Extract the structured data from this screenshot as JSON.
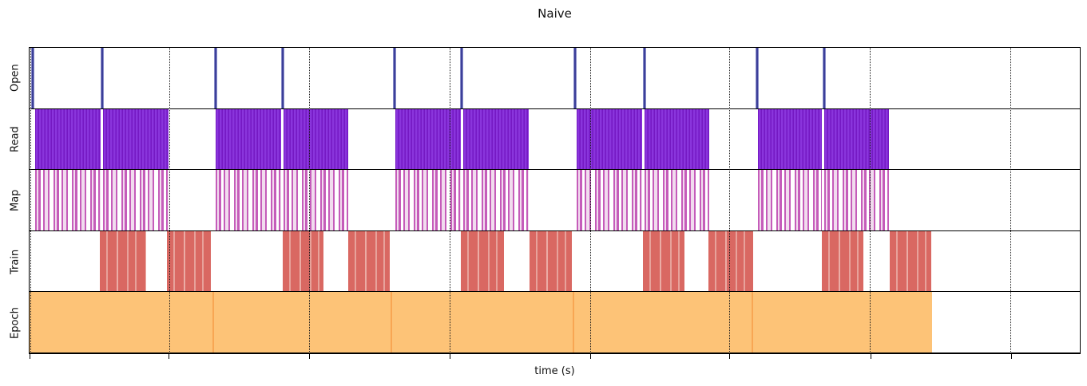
{
  "title": "Naive",
  "xlabel": "time (s)",
  "colors": {
    "open_spike": "#3c3f99",
    "read_block": "#7f24d4",
    "map_lines": "#c55cba",
    "train_block": "#d96862",
    "train_seam": "#e7a29b",
    "epoch_bar": "#fdc377",
    "epoch_seam": "#f8a653",
    "grid": "#1a1a1a",
    "frame": "#000000"
  },
  "chart_data": {
    "type": "broken_barh_timeline",
    "title": "Naive",
    "xlabel": "time (s)",
    "x_axis": {
      "tick_labels": [],
      "tick_positions_pct": [
        0.1,
        13.29,
        26.65,
        40.02,
        53.38,
        66.59,
        80.03,
        93.39
      ],
      "gridlines": "dotted-vertical",
      "units": "percent of visible time axis (no numeric tick labels shown)"
    },
    "legend": "none",
    "rows": [
      {
        "label": "Open",
        "style": "spikes",
        "color": "#3c3f99",
        "events_pct": [
          0.3,
          6.91,
          17.69,
          24.07,
          34.78,
          41.15,
          51.94,
          58.54,
          69.25,
          75.63
        ]
      },
      {
        "label": "Read",
        "style": "read-bar",
        "color": "#7f24d4",
        "intervals_pct": [
          [
            0.53,
            6.76
          ],
          [
            6.99,
            13.21
          ],
          [
            17.69,
            23.99
          ],
          [
            24.22,
            30.37
          ],
          [
            34.85,
            41.08
          ],
          [
            41.31,
            47.53
          ],
          [
            52.09,
            58.31
          ],
          [
            58.54,
            64.69
          ],
          [
            69.32,
            75.47
          ],
          [
            75.7,
            81.85
          ]
        ]
      },
      {
        "label": "Map",
        "style": "map-bar",
        "color": "#c55cba",
        "intervals_pct": [
          [
            0.53,
            6.76
          ],
          [
            6.99,
            13.21
          ],
          [
            17.69,
            23.99
          ],
          [
            24.22,
            30.37
          ],
          [
            34.85,
            41.08
          ],
          [
            41.31,
            47.53
          ],
          [
            52.09,
            58.31
          ],
          [
            58.54,
            64.69
          ],
          [
            69.32,
            75.47
          ],
          [
            75.7,
            81.85
          ]
        ]
      },
      {
        "label": "Train",
        "style": "train-bar",
        "color": "#d96862",
        "intervals_pct": [
          [
            6.68,
            11.09
          ],
          [
            13.06,
            17.24
          ],
          [
            24.07,
            28.02
          ],
          [
            30.37,
            34.32
          ],
          [
            41.08,
            45.18
          ],
          [
            47.61,
            51.63
          ],
          [
            58.39,
            62.34
          ],
          [
            64.62,
            68.87
          ],
          [
            75.47,
            79.42
          ],
          [
            81.93,
            85.88
          ]
        ]
      },
      {
        "label": "Epoch",
        "style": "epoch-bar",
        "color": "#fdc377",
        "intervals_pct": [
          [
            0.0,
            17.39
          ],
          [
            17.39,
            34.4
          ],
          [
            34.4,
            51.71
          ],
          [
            51.71,
            68.72
          ],
          [
            68.72,
            85.95
          ]
        ]
      }
    ]
  }
}
